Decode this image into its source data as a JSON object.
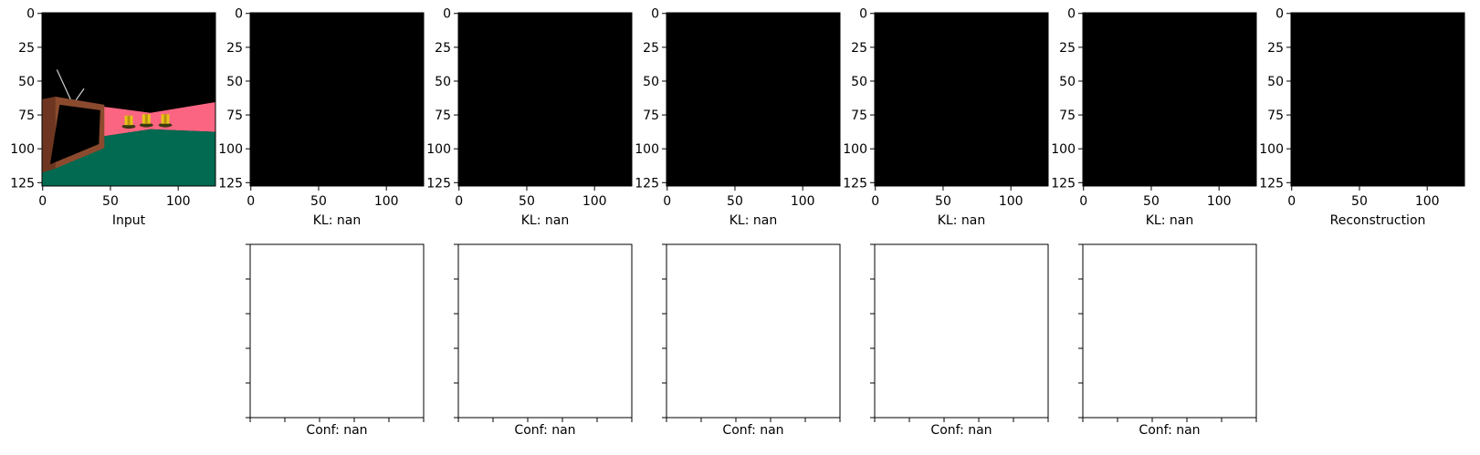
{
  "chart_data": {
    "type": "image-grid",
    "image_size": [
      128,
      128
    ],
    "top_row": [
      {
        "label": "Input",
        "content": "rendered-scene",
        "xticks": [
          "0",
          "50",
          "100"
        ],
        "yticks": [
          "0",
          "25",
          "50",
          "75",
          "100",
          "125"
        ]
      },
      {
        "label": "KL: nan",
        "content": "black",
        "xticks": [
          "0",
          "50",
          "100"
        ],
        "yticks": [
          "0",
          "25",
          "50",
          "75",
          "100",
          "125"
        ]
      },
      {
        "label": "KL: nan",
        "content": "black",
        "xticks": [
          "0",
          "50",
          "100"
        ],
        "yticks": [
          "0",
          "25",
          "50",
          "75",
          "100",
          "125"
        ]
      },
      {
        "label": "KL: nan",
        "content": "black",
        "xticks": [
          "0",
          "50",
          "100"
        ],
        "yticks": [
          "0",
          "25",
          "50",
          "75",
          "100",
          "125"
        ]
      },
      {
        "label": "KL: nan",
        "content": "black",
        "xticks": [
          "0",
          "50",
          "100"
        ],
        "yticks": [
          "0",
          "25",
          "50",
          "75",
          "100",
          "125"
        ]
      },
      {
        "label": "KL: nan",
        "content": "black",
        "xticks": [
          "0",
          "50",
          "100"
        ],
        "yticks": [
          "0",
          "25",
          "50",
          "75",
          "100",
          "125"
        ]
      },
      {
        "label": "Reconstruction",
        "content": "black",
        "xticks": [
          "0",
          "50",
          "100"
        ],
        "yticks": [
          "0",
          "25",
          "50",
          "75",
          "100",
          "125"
        ]
      }
    ],
    "bottom_row": [
      {
        "label": "Conf: nan",
        "content": "white"
      },
      {
        "label": "Conf: nan",
        "content": "white"
      },
      {
        "label": "Conf: nan",
        "content": "white"
      },
      {
        "label": "Conf: nan",
        "content": "white"
      },
      {
        "label": "Conf: nan",
        "content": "white"
      }
    ],
    "colors": {
      "black": "#000000",
      "white": "#ffffff",
      "scene_wall": "#fb6581",
      "scene_floor": "#016a50",
      "scene_tv_frame": "#8b4a2e",
      "scene_tv_screen": "#000000",
      "scene_objects": "#e8c21a",
      "scene_antenna": "#cfcfcf"
    }
  }
}
